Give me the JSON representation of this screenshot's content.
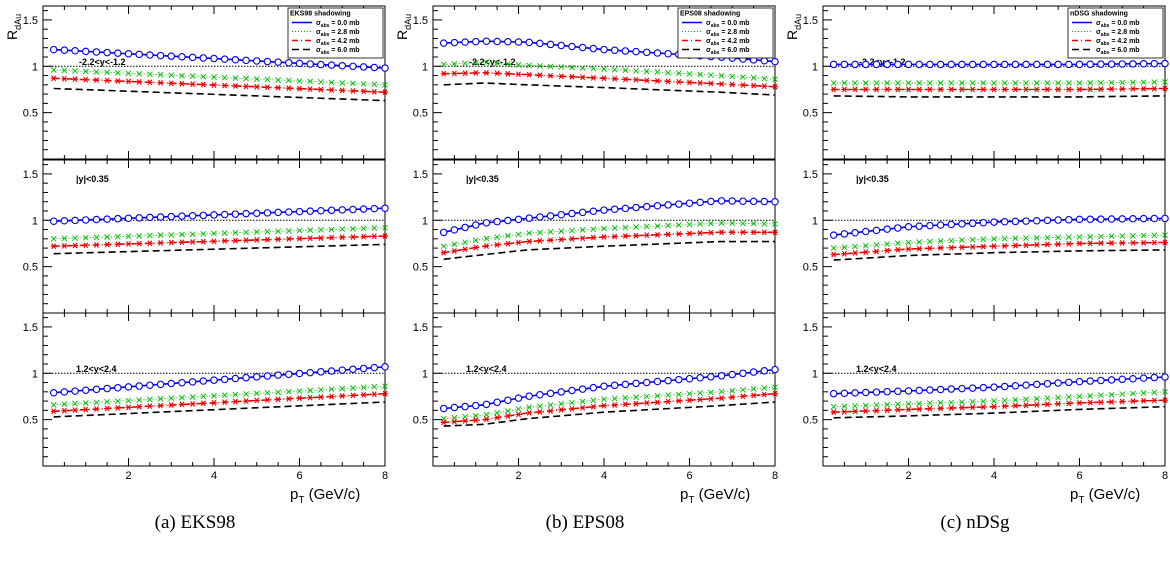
{
  "figure": {
    "ylabel_main": "R",
    "ylabel_sub": "dAu",
    "xlabel_main": "p",
    "xlabel_sub": "T",
    "xlabel_unit": "(GeV/c)",
    "y_ticks": [
      "0.5",
      "1",
      "1.5"
    ],
    "x_ticks": [
      "2",
      "4",
      "6",
      "8"
    ],
    "legend_sigma_sub": "abs",
    "colors": {
      "s0": "#0000ee",
      "s28": "#00bb00",
      "s42": "#ee0000",
      "s60": "#000000"
    }
  },
  "captions": [
    "(a) EKS98",
    "(b) EPS08",
    "(c) nDSg"
  ],
  "chart_data": [
    {
      "type": "line",
      "title": "EKS98 shadowing",
      "xlabel": "p_T (GeV/c)",
      "ylabel": "R_dAu",
      "xlim": [
        0,
        8
      ],
      "ylim": [
        0,
        1.65
      ],
      "reference_line": 1.0,
      "legend": [
        "σ_abs = 0.0 mb",
        "σ_abs = 2.8 mb",
        "σ_abs = 4.2 mb",
        "σ_abs = 6.0 mb"
      ],
      "x": [
        0.25,
        8.0
      ],
      "panels": [
        {
          "label": "-2.2<y<-1.2",
          "series": [
            {
              "name": "σ_abs = 0.0 mb",
              "values": [
                1.18,
                0.98
              ]
            },
            {
              "name": "σ_abs = 2.8 mb",
              "values": [
                0.96,
                0.8
              ]
            },
            {
              "name": "σ_abs = 4.2 mb",
              "values": [
                0.87,
                0.72
              ]
            },
            {
              "name": "σ_abs = 6.0 mb",
              "values": [
                0.76,
                0.63
              ]
            }
          ]
        },
        {
          "label": "|y|<0.35",
          "series": [
            {
              "name": "σ_abs = 0.0 mb",
              "values": [
                0.99,
                1.13
              ]
            },
            {
              "name": "σ_abs = 2.8 mb",
              "values": [
                0.8,
                0.92
              ]
            },
            {
              "name": "σ_abs = 4.2 mb",
              "values": [
                0.72,
                0.83
              ]
            },
            {
              "name": "σ_abs = 6.0 mb",
              "values": [
                0.64,
                0.74
              ]
            }
          ]
        },
        {
          "label": "1.2<y<2.4",
          "series": [
            {
              "name": "σ_abs = 0.0 mb",
              "values": [
                0.79,
                1.07
              ]
            },
            {
              "name": "σ_abs = 2.8 mb",
              "values": [
                0.66,
                0.86
              ]
            },
            {
              "name": "σ_abs = 4.2 mb",
              "values": [
                0.59,
                0.78
              ]
            },
            {
              "name": "σ_abs = 6.0 mb",
              "values": [
                0.53,
                0.69
              ]
            }
          ]
        }
      ]
    },
    {
      "type": "line",
      "title": "EPS08 shadowing",
      "xlabel": "p_T (GeV/c)",
      "ylabel": "R_dAu",
      "xlim": [
        0,
        8
      ],
      "ylim": [
        0,
        1.65
      ],
      "reference_line": 1.0,
      "legend": [
        "σ_abs = 0.0 mb",
        "σ_abs = 2.8 mb",
        "σ_abs = 4.2 mb",
        "σ_abs = 6.0 mb"
      ],
      "x": [
        0.25,
        1.2,
        2.2,
        4.0,
        6.7,
        8.0
      ],
      "panels": [
        {
          "label": "-2.2<y<-1.2",
          "series": [
            {
              "name": "σ_abs = 0.0 mb",
              "values": [
                1.25,
                1.27,
                1.26,
                1.18,
                1.1,
                1.05
              ]
            },
            {
              "name": "σ_abs = 2.8 mb",
              "values": [
                1.02,
                1.04,
                1.01,
                0.97,
                0.9,
                0.86
              ]
            },
            {
              "name": "σ_abs = 4.2 mb",
              "values": [
                0.92,
                0.93,
                0.91,
                0.87,
                0.81,
                0.78
              ]
            },
            {
              "name": "σ_abs = 6.0 mb",
              "values": [
                0.8,
                0.82,
                0.8,
                0.77,
                0.72,
                0.69
              ]
            }
          ]
        },
        {
          "label": "|y|<0.35",
          "series": [
            {
              "name": "σ_abs = 0.0 mb",
              "values": [
                0.87,
                0.97,
                1.02,
                1.11,
                1.21,
                1.2
              ]
            },
            {
              "name": "σ_abs = 2.8 mb",
              "values": [
                0.72,
                0.8,
                0.86,
                0.91,
                0.97,
                0.96
              ]
            },
            {
              "name": "σ_abs = 4.2 mb",
              "values": [
                0.65,
                0.72,
                0.77,
                0.82,
                0.87,
                0.87
              ]
            },
            {
              "name": "σ_abs = 6.0 mb",
              "values": [
                0.58,
                0.63,
                0.68,
                0.72,
                0.77,
                0.77
              ]
            }
          ]
        },
        {
          "label": "1.2<y<2.4",
          "series": [
            {
              "name": "σ_abs = 0.0 mb",
              "values": [
                0.62,
                0.66,
                0.75,
                0.86,
                0.97,
                1.04
              ]
            },
            {
              "name": "σ_abs = 2.8 mb",
              "values": [
                0.51,
                0.55,
                0.63,
                0.72,
                0.8,
                0.85
              ]
            },
            {
              "name": "σ_abs = 4.2 mb",
              "values": [
                0.47,
                0.5,
                0.57,
                0.65,
                0.73,
                0.78
              ]
            },
            {
              "name": "σ_abs = 6.0 mb",
              "values": [
                0.43,
                0.45,
                0.51,
                0.58,
                0.65,
                0.69
              ]
            }
          ]
        }
      ]
    },
    {
      "type": "line",
      "title": "nDSG shadowing",
      "xlabel": "p_T (GeV/c)",
      "ylabel": "R_dAu",
      "xlim": [
        0,
        8
      ],
      "ylim": [
        0,
        1.65
      ],
      "reference_line": 1.0,
      "legend": [
        "σ_abs = 0.0 mb",
        "σ_abs = 2.8 mb",
        "σ_abs = 4.2 mb",
        "σ_abs = 6.0 mb"
      ],
      "x": [
        0.25,
        2.0,
        4.0,
        6.0,
        8.0
      ],
      "panels": [
        {
          "label": "-2.2<y<-1.2",
          "series": [
            {
              "name": "σ_abs = 0.0 mb",
              "values": [
                1.02,
                1.02,
                1.02,
                1.02,
                1.03
              ]
            },
            {
              "name": "σ_abs = 2.8 mb",
              "values": [
                0.82,
                0.82,
                0.82,
                0.82,
                0.83
              ]
            },
            {
              "name": "σ_abs = 4.2 mb",
              "values": [
                0.75,
                0.75,
                0.75,
                0.75,
                0.76
              ]
            },
            {
              "name": "σ_abs = 6.0 mb",
              "values": [
                0.68,
                0.67,
                0.67,
                0.67,
                0.68
              ]
            }
          ]
        },
        {
          "label": "|y|<0.35",
          "series": [
            {
              "name": "σ_abs = 0.0 mb",
              "values": [
                0.84,
                0.93,
                0.98,
                1.01,
                1.02
              ]
            },
            {
              "name": "σ_abs = 2.8 mb",
              "values": [
                0.7,
                0.76,
                0.8,
                0.82,
                0.84
              ]
            },
            {
              "name": "σ_abs = 4.2 mb",
              "values": [
                0.63,
                0.69,
                0.72,
                0.75,
                0.76
              ]
            },
            {
              "name": "σ_abs = 6.0 mb",
              "values": [
                0.57,
                0.62,
                0.65,
                0.67,
                0.68
              ]
            }
          ]
        },
        {
          "label": "1.2<y<2.4",
          "series": [
            {
              "name": "σ_abs = 0.0 mb",
              "values": [
                0.78,
                0.81,
                0.85,
                0.91,
                0.96
              ]
            },
            {
              "name": "σ_abs = 2.8 mb",
              "values": [
                0.64,
                0.67,
                0.7,
                0.75,
                0.8
              ]
            },
            {
              "name": "σ_abs = 4.2 mb",
              "values": [
                0.58,
                0.61,
                0.64,
                0.68,
                0.71
              ]
            },
            {
              "name": "σ_abs = 6.0 mb",
              "values": [
                0.52,
                0.54,
                0.57,
                0.61,
                0.64
              ]
            }
          ]
        }
      ]
    }
  ]
}
